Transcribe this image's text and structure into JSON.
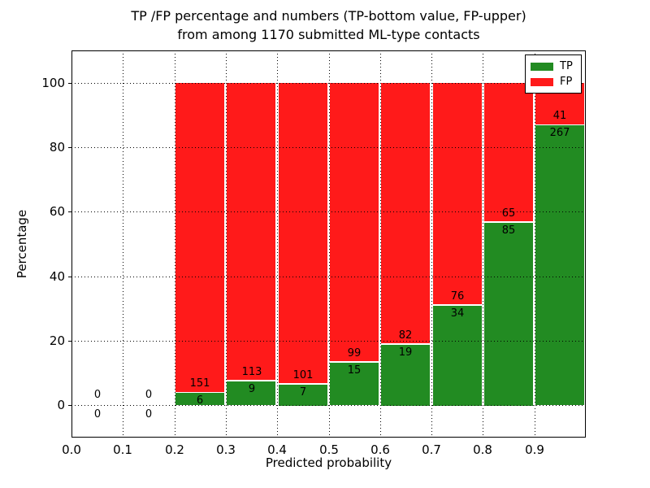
{
  "figure": {
    "title_line1": "TP /FP percentage and numbers (TP-bottom value, FP-upper)",
    "title_line2": "from among 1170 submitted ML-type contacts",
    "xlabel": "Predicted probability",
    "ylabel": "Percentage"
  },
  "legend": {
    "items": [
      {
        "label": "TP",
        "color": "#228b22"
      },
      {
        "label": "FP",
        "color": "#ff1a1a"
      }
    ]
  },
  "chart_data": {
    "type": "bar",
    "stacked": true,
    "title": "TP /FP percentage and numbers (TP-bottom value, FP-upper)\nfrom among 1170 submitted ML-type contacts",
    "xlabel": "Predicted probability",
    "ylabel": "Percentage",
    "total_contacts": 1170,
    "grid": "dotted, drawn above bars",
    "legend_position": "upper right",
    "xlim": [
      0.0,
      1.0
    ],
    "ylim": [
      -10,
      110
    ],
    "xticks": [
      0.0,
      0.1,
      0.2,
      0.3,
      0.4,
      0.5,
      0.6,
      0.7,
      0.8,
      0.9
    ],
    "xtick_labels": [
      "0.0",
      "0.1",
      "0.2",
      "0.3",
      "0.4",
      "0.5",
      "0.6",
      "0.7",
      "0.8",
      "0.9"
    ],
    "yticks": [
      0,
      20,
      40,
      60,
      80,
      100
    ],
    "ytick_labels": [
      "0",
      "20",
      "40",
      "60",
      "80",
      "100"
    ],
    "series": [
      {
        "name": "TP",
        "color": "#228b22"
      },
      {
        "name": "FP",
        "color": "#ff1a1a"
      }
    ],
    "bins": [
      {
        "x0": 0.0,
        "x1": 0.1,
        "tp": 0,
        "fp": 0
      },
      {
        "x0": 0.1,
        "x1": 0.2,
        "tp": 0,
        "fp": 0
      },
      {
        "x0": 0.2,
        "x1": 0.3,
        "tp": 6,
        "fp": 151
      },
      {
        "x0": 0.3,
        "x1": 0.4,
        "tp": 9,
        "fp": 113
      },
      {
        "x0": 0.4,
        "x1": 0.5,
        "tp": 7,
        "fp": 101
      },
      {
        "x0": 0.5,
        "x1": 0.6,
        "tp": 15,
        "fp": 99
      },
      {
        "x0": 0.6,
        "x1": 0.7,
        "tp": 19,
        "fp": 82
      },
      {
        "x0": 0.7,
        "x1": 0.8,
        "tp": 34,
        "fp": 76
      },
      {
        "x0": 0.8,
        "x1": 0.9,
        "tp": 85,
        "fp": 65
      },
      {
        "x0": 0.9,
        "x1": 1.0,
        "tp": 267,
        "fp": 41
      }
    ],
    "bar_semantics": "Each bar stacks TP (green, bottom) and FP (red, top) to 100%; printed numbers are raw counts: FP count above the TP/FP boundary, TP count below it"
  }
}
